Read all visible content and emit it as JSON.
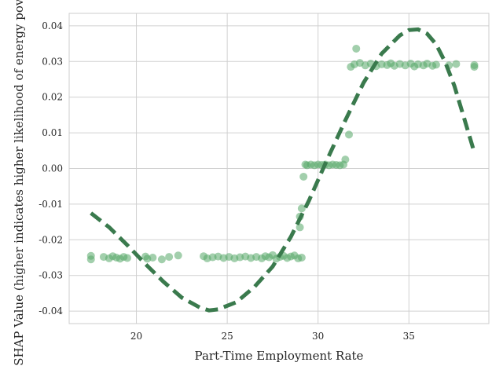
{
  "chart_data": {
    "type": "scatter",
    "xlabel": "Part-Time Employment Rate",
    "ylabel": "SHAP Value (higher indicates higher likelihood of energy poverty)",
    "xlim": [
      16.3,
      39.4
    ],
    "ylim": [
      -0.0435,
      0.0435
    ],
    "x_ticks": [
      20,
      25,
      30,
      35
    ],
    "x_tick_labels": [
      "20",
      "25",
      "30",
      "35"
    ],
    "y_ticks": [
      -0.04,
      -0.03,
      -0.02,
      -0.01,
      0.0,
      0.01,
      0.02,
      0.03,
      0.04
    ],
    "y_tick_labels": [
      "-0.04",
      "-0.03",
      "-0.02",
      "-0.01",
      "0.00",
      "0.01",
      "0.02",
      "0.03",
      "0.04"
    ],
    "grid": true,
    "colors": {
      "points": "#55a868",
      "trend": "#3a7a4d",
      "grid": "#d0d0d0",
      "spine": "#cccccc"
    },
    "series": [
      {
        "kind": "points",
        "x": [
          17.5,
          17.5,
          18.2,
          18.5,
          18.7,
          18.9,
          19.1,
          19.3,
          19.5,
          20.5,
          20.6,
          20.9,
          21.4,
          21.8,
          22.3,
          23.7,
          23.9,
          24.2,
          24.5,
          24.8,
          25.1,
          25.4,
          25.7,
          26.0,
          26.3,
          26.6,
          26.9,
          27.1,
          27.3,
          27.5,
          27.7,
          27.9,
          28.1,
          28.3,
          28.5,
          28.7,
          28.9,
          29.1,
          29.0,
          29.0,
          29.1,
          29.2,
          29.3,
          29.4,
          29.6,
          29.8,
          30.0,
          30.2,
          30.4,
          30.6,
          30.8,
          31.0,
          31.2,
          31.4,
          31.5,
          31.7,
          31.8,
          32.0,
          32.1,
          32.3,
          32.6,
          32.9,
          33.2,
          33.5,
          33.8,
          34.0,
          34.2,
          34.5,
          34.8,
          35.1,
          35.3,
          35.5,
          35.8,
          36.0,
          36.3,
          36.5,
          37.2,
          37.6,
          38.6,
          38.6
        ],
        "y": [
          -0.0245,
          -0.0255,
          -0.0248,
          -0.0252,
          -0.0246,
          -0.025,
          -0.0253,
          -0.0248,
          -0.0251,
          -0.0247,
          -0.0253,
          -0.025,
          -0.0255,
          -0.0248,
          -0.0244,
          -0.0246,
          -0.0252,
          -0.0249,
          -0.0247,
          -0.0251,
          -0.0248,
          -0.0252,
          -0.0249,
          -0.0247,
          -0.0251,
          -0.0248,
          -0.0252,
          -0.0246,
          -0.0249,
          -0.0243,
          -0.0253,
          -0.0248,
          -0.0245,
          -0.0251,
          -0.0247,
          -0.0244,
          -0.0252,
          -0.025,
          -0.0165,
          -0.0135,
          -0.0112,
          -0.0023,
          0.0011,
          0.0009,
          0.0011,
          0.0009,
          0.0011,
          0.001,
          0.0011,
          0.0009,
          0.0011,
          0.001,
          0.0009,
          0.0011,
          0.0025,
          0.0095,
          0.0285,
          0.0292,
          0.0336,
          0.0296,
          0.0289,
          0.0294,
          0.0287,
          0.0292,
          0.029,
          0.0295,
          0.0288,
          0.0293,
          0.0289,
          0.0294,
          0.0286,
          0.0292,
          0.0289,
          0.0294,
          0.0288,
          0.0291,
          0.0289,
          0.0293,
          0.029,
          0.0285
        ]
      },
      {
        "kind": "trend",
        "x": [
          17.5,
          18.5,
          19.5,
          20.5,
          21.5,
          22.5,
          23.5,
          24.0,
          24.5,
          25.5,
          26.5,
          27.5,
          28.5,
          29.5,
          30.5,
          31.5,
          32.5,
          33.5,
          34.5,
          35.0,
          35.5,
          36.0,
          36.5,
          37.0,
          37.5,
          38.0,
          38.6
        ],
        "y": [
          -0.0125,
          -0.0165,
          -0.0215,
          -0.0268,
          -0.0318,
          -0.0362,
          -0.039,
          -0.0398,
          -0.0395,
          -0.0375,
          -0.0332,
          -0.0275,
          -0.0192,
          -0.009,
          0.0025,
          0.0135,
          0.024,
          0.0322,
          0.0373,
          0.0388,
          0.039,
          0.0378,
          0.0348,
          0.0298,
          0.0232,
          0.0148,
          0.0045
        ]
      }
    ]
  }
}
